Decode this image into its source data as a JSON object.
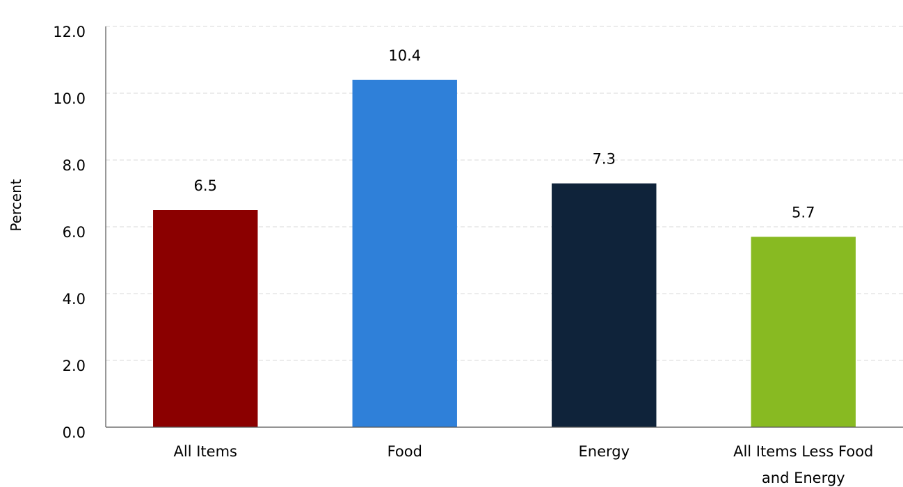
{
  "chart_data": {
    "type": "bar",
    "title": "",
    "xlabel": "",
    "ylabel": "Percent",
    "categories": [
      [
        "All Items"
      ],
      [
        "Food"
      ],
      [
        "Energy"
      ],
      [
        "All Items Less Food",
        "and Energy"
      ]
    ],
    "values": [
      6.5,
      10.4,
      7.3,
      5.7
    ],
    "data_labels": [
      "6.5",
      "10.4",
      "7.3",
      "5.7"
    ],
    "colors": [
      "#8b0000",
      "#2f80d9",
      "#0f233a",
      "#88ba22"
    ],
    "ylim": [
      0,
      12
    ],
    "yticks": [
      "0.0",
      "2.0",
      "4.0",
      "6.0",
      "8.0",
      "10.0",
      "12.0"
    ],
    "ytick_values": [
      0,
      2,
      4,
      6,
      8,
      10,
      12
    ],
    "grid": true,
    "legend": "none"
  }
}
